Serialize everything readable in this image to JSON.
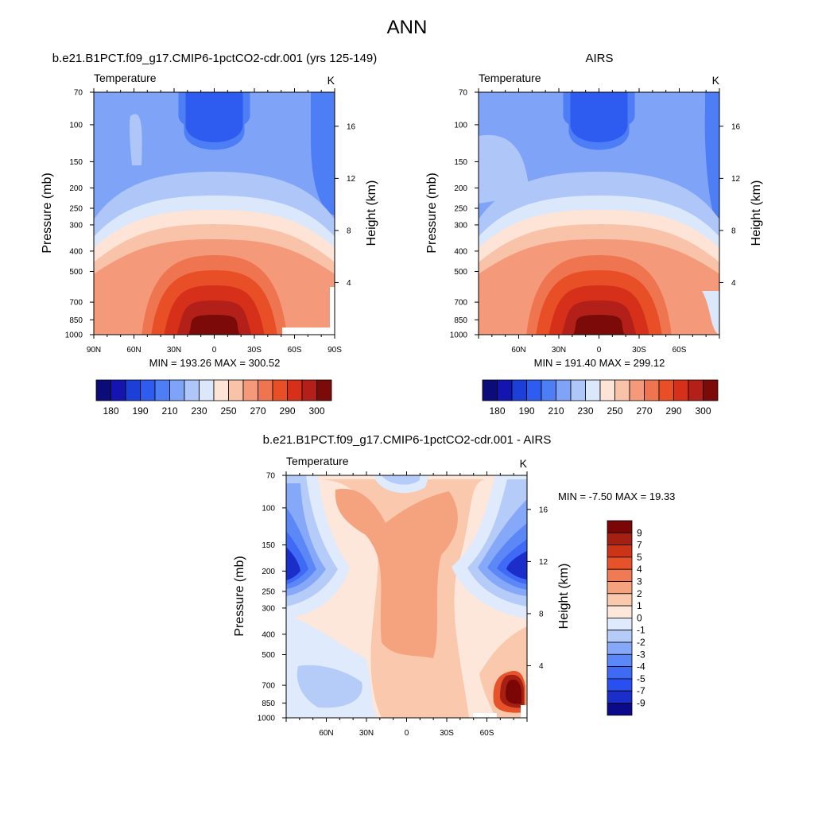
{
  "page": {
    "title": "ANN"
  },
  "colors": {
    "abs_palette": [
      "#0b0b7a",
      "#1414b0",
      "#1c3fd8",
      "#2e5cf0",
      "#4d7ef5",
      "#7fa3f7",
      "#aec6f8",
      "#dbe7fb",
      "#fde4d7",
      "#f8c3a9",
      "#f49a7a",
      "#ef7550",
      "#e84f27",
      "#d6301a",
      "#b3201a",
      "#7c0a08"
    ],
    "diff_palette": [
      "#0a0a8a",
      "#1c2ec9",
      "#2a4ff0",
      "#3f6af6",
      "#5c88f7",
      "#86a8f8",
      "#b5ccf9",
      "#dfeafc",
      "#fde6da",
      "#f9c8ad",
      "#f5a27f",
      "#ef7a53",
      "#e6532b",
      "#cc3418",
      "#a51f12",
      "#7a0706"
    ]
  },
  "chart_data": [
    {
      "id": "model",
      "type": "heatmap",
      "title": "b.e21.B1PCT.f09_g17.CMIP6-1pctCO2-cdr.001 (yrs 125-149)",
      "variable": "Temperature",
      "units": "K",
      "ylabel": "Pressure (mb)",
      "y2label": "Height (km)",
      "x_ticks": [
        "90N",
        "60N",
        "30N",
        "0",
        "30S",
        "60S",
        "90S"
      ],
      "x_range": [
        90,
        -90
      ],
      "y_ticks": [
        70,
        100,
        150,
        200,
        250,
        300,
        400,
        500,
        700,
        850,
        1000
      ],
      "y_range": [
        70,
        1000
      ],
      "y_scale": "log",
      "y2_ticks": [
        4,
        8,
        12,
        16
      ],
      "stats": "MIN = 193.26  MAX = 300.52",
      "min": 193.26,
      "max": 300.52,
      "colorbar_levels": [
        175,
        180,
        185,
        190,
        200,
        210,
        220,
        230,
        240,
        250,
        260,
        270,
        280,
        290,
        295,
        300
      ],
      "colorbar_labels": [
        "180",
        "190",
        "210",
        "230",
        "250",
        "270",
        "290",
        "300"
      ]
    },
    {
      "id": "obs",
      "type": "heatmap",
      "title": "AIRS",
      "variable": "Temperature",
      "units": "K",
      "ylabel": "Pressure (mb)",
      "y2label": "Height (km)",
      "x_ticks": [
        "60N",
        "30N",
        "0",
        "30S",
        "60S"
      ],
      "x_range": [
        90,
        -90
      ],
      "y_ticks": [
        70,
        100,
        150,
        200,
        250,
        300,
        400,
        500,
        700,
        850,
        1000
      ],
      "y_range": [
        70,
        1000
      ],
      "y_scale": "log",
      "y2_ticks": [
        4,
        8,
        12,
        16
      ],
      "stats": "MIN = 191.40  MAX = 299.12",
      "min": 191.4,
      "max": 299.12,
      "colorbar_labels": [
        "180",
        "190",
        "210",
        "230",
        "250",
        "270",
        "290",
        "300"
      ]
    },
    {
      "id": "diff",
      "type": "heatmap",
      "title": "b.e21.B1PCT.f09_g17.CMIP6-1pctCO2-cdr.001 - AIRS",
      "variable": "Temperature",
      "units": "K",
      "ylabel": "Pressure (mb)",
      "y2label": "Height (km)",
      "x_ticks": [
        "60N",
        "30N",
        "0",
        "30S",
        "60S"
      ],
      "x_range": [
        90,
        -90
      ],
      "y_ticks": [
        70,
        100,
        150,
        200,
        250,
        300,
        400,
        500,
        700,
        850,
        1000
      ],
      "y_range": [
        70,
        1000
      ],
      "y_scale": "log",
      "y2_ticks": [
        4,
        8,
        12,
        16
      ],
      "stats": "MIN =  -7.50  MAX =  19.33",
      "min": -7.5,
      "max": 19.33,
      "colorbar_labels": [
        "9",
        "7",
        "5",
        "4",
        "3",
        "2",
        "1",
        "0",
        "-1",
        "-2",
        "-3",
        "-4",
        "-5",
        "-7",
        "-9"
      ]
    }
  ]
}
